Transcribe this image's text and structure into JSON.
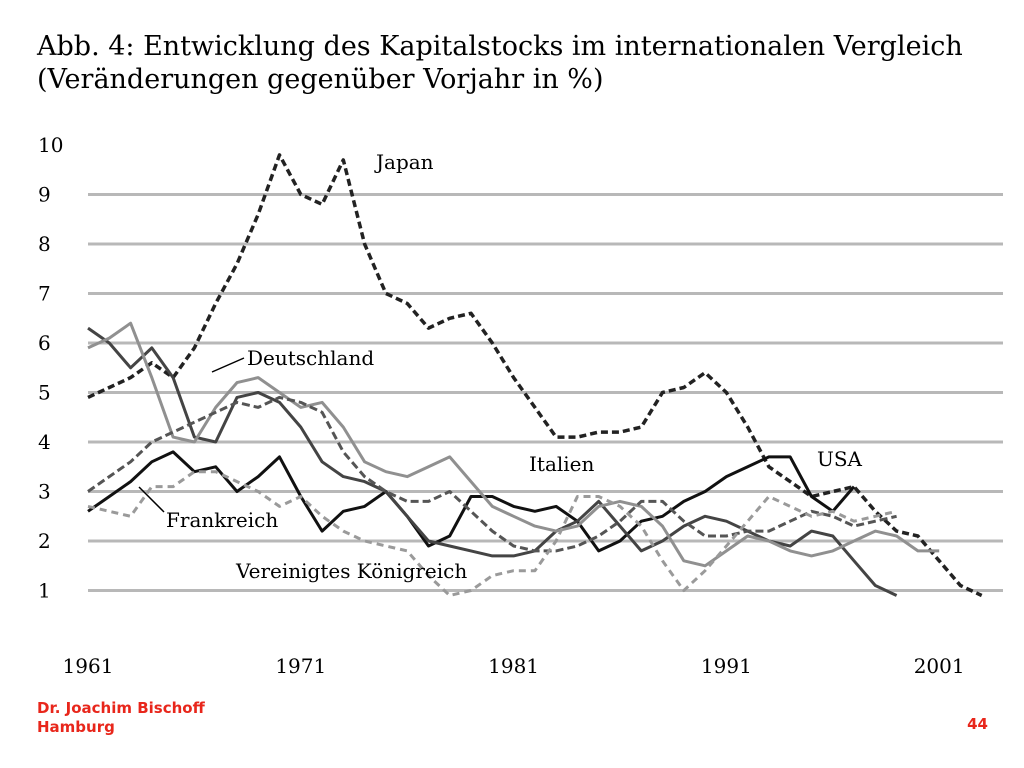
{
  "slide": {
    "title_line1": "Abb. 4: Entwicklung des Kapitalstocks im internationalen Vergleich",
    "title_line2": "(Veränderungen gegenüber Vorjahr in %)",
    "author_line1": "Dr. Joachim Bischoff",
    "author_line2": "Hamburg",
    "page_number": "44"
  },
  "chart_data": {
    "type": "line",
    "title": "Abb. 4: Entwicklung des Kapitalstocks im internationalen Vergleich (Veränderungen gegenüber Vorjahr in %)",
    "xlabel": "",
    "ylabel": "",
    "xlim": [
      1961,
      2004
    ],
    "ylim": [
      0,
      10
    ],
    "x_ticks": [
      1961,
      1971,
      1981,
      1991,
      2001
    ],
    "y_ticks": [
      1,
      2,
      3,
      4,
      5,
      6,
      7,
      8,
      9,
      10
    ],
    "grid": "horizontal",
    "legend": "inline labels",
    "series": [
      {
        "name": "Japan",
        "style": "dashed",
        "color": "#222222",
        "points": [
          [
            1961,
            4.9
          ],
          [
            1962,
            5.1
          ],
          [
            1963,
            5.3
          ],
          [
            1964,
            5.6
          ],
          [
            1965,
            5.3
          ],
          [
            1966,
            5.9
          ],
          [
            1967,
            6.8
          ],
          [
            1968,
            7.6
          ],
          [
            1969,
            8.6
          ],
          [
            1970,
            9.8
          ],
          [
            1971,
            9.0
          ],
          [
            1972,
            8.8
          ],
          [
            1973,
            9.7
          ],
          [
            1974,
            8.0
          ],
          [
            1975,
            7.0
          ],
          [
            1976,
            6.8
          ],
          [
            1977,
            6.3
          ],
          [
            1978,
            6.5
          ],
          [
            1979,
            6.6
          ],
          [
            1980,
            6.0
          ],
          [
            1981,
            5.3
          ],
          [
            1982,
            4.7
          ],
          [
            1983,
            4.1
          ],
          [
            1984,
            4.1
          ],
          [
            1985,
            4.2
          ],
          [
            1986,
            4.2
          ],
          [
            1987,
            4.3
          ],
          [
            1988,
            5.0
          ],
          [
            1989,
            5.1
          ],
          [
            1990,
            5.4
          ],
          [
            1991,
            5.0
          ],
          [
            1992,
            4.3
          ],
          [
            1993,
            3.5
          ],
          [
            1994,
            3.2
          ],
          [
            1995,
            2.9
          ],
          [
            1996,
            3.0
          ],
          [
            1997,
            3.1
          ],
          [
            1998,
            2.6
          ],
          [
            1999,
            2.2
          ],
          [
            2000,
            2.1
          ],
          [
            2001,
            1.6
          ],
          [
            2002,
            1.1
          ],
          [
            2003,
            0.9
          ]
        ]
      },
      {
        "name": "USA",
        "style": "solid",
        "color": "#111111",
        "points": [
          [
            1961,
            2.6
          ],
          [
            1962,
            2.9
          ],
          [
            1963,
            3.2
          ],
          [
            1964,
            3.6
          ],
          [
            1965,
            3.8
          ],
          [
            1966,
            3.4
          ],
          [
            1967,
            3.5
          ],
          [
            1968,
            3.0
          ],
          [
            1969,
            3.3
          ],
          [
            1970,
            3.7
          ],
          [
            1971,
            2.9
          ],
          [
            1972,
            2.2
          ],
          [
            1973,
            2.6
          ],
          [
            1974,
            2.7
          ],
          [
            1975,
            3.0
          ],
          [
            1976,
            2.5
          ],
          [
            1977,
            1.9
          ],
          [
            1978,
            2.1
          ],
          [
            1979,
            2.9
          ],
          [
            1980,
            2.9
          ],
          [
            1981,
            2.7
          ],
          [
            1982,
            2.6
          ],
          [
            1983,
            2.7
          ],
          [
            1984,
            2.4
          ],
          [
            1985,
            1.8
          ],
          [
            1986,
            2.0
          ],
          [
            1987,
            2.4
          ],
          [
            1988,
            2.5
          ],
          [
            1989,
            2.8
          ],
          [
            1990,
            3.0
          ],
          [
            1991,
            3.3
          ],
          [
            1992,
            3.5
          ],
          [
            1993,
            3.7
          ],
          [
            1994,
            3.7
          ],
          [
            1995,
            2.9
          ],
          [
            1996,
            2.6
          ],
          [
            1997,
            3.1
          ]
        ]
      },
      {
        "name": "Deutschland",
        "style": "solid",
        "color": "#444444",
        "points": [
          [
            1961,
            6.3
          ],
          [
            1962,
            6.0
          ],
          [
            1963,
            5.5
          ],
          [
            1964,
            5.9
          ],
          [
            1965,
            5.3
          ],
          [
            1966,
            4.1
          ],
          [
            1967,
            4.0
          ],
          [
            1968,
            4.9
          ],
          [
            1969,
            5.0
          ],
          [
            1970,
            4.8
          ],
          [
            1971,
            4.3
          ],
          [
            1972,
            3.6
          ],
          [
            1973,
            3.3
          ],
          [
            1974,
            3.2
          ],
          [
            1975,
            3.0
          ],
          [
            1976,
            2.5
          ],
          [
            1977,
            2.0
          ],
          [
            1978,
            1.9
          ],
          [
            1979,
            1.8
          ],
          [
            1980,
            1.7
          ],
          [
            1981,
            1.7
          ],
          [
            1982,
            1.8
          ],
          [
            1983,
            2.2
          ],
          [
            1984,
            2.4
          ],
          [
            1985,
            2.8
          ],
          [
            1986,
            2.3
          ],
          [
            1987,
            1.8
          ],
          [
            1988,
            2.0
          ],
          [
            1989,
            2.3
          ],
          [
            1990,
            2.5
          ],
          [
            1991,
            2.4
          ],
          [
            1992,
            2.2
          ],
          [
            1993,
            2.0
          ],
          [
            1994,
            1.9
          ],
          [
            1995,
            2.2
          ],
          [
            1996,
            2.1
          ],
          [
            1997,
            1.6
          ],
          [
            1998,
            1.1
          ],
          [
            1999,
            0.9
          ]
        ]
      },
      {
        "name": "Italien",
        "style": "solid",
        "color": "#909090",
        "points": [
          [
            1961,
            5.9
          ],
          [
            1962,
            6.1
          ],
          [
            1963,
            6.4
          ],
          [
            1964,
            5.3
          ],
          [
            1965,
            4.1
          ],
          [
            1966,
            4.0
          ],
          [
            1967,
            4.7
          ],
          [
            1968,
            5.2
          ],
          [
            1969,
            5.3
          ],
          [
            1970,
            5.0
          ],
          [
            1971,
            4.7
          ],
          [
            1972,
            4.8
          ],
          [
            1973,
            4.3
          ],
          [
            1974,
            3.6
          ],
          [
            1975,
            3.4
          ],
          [
            1976,
            3.3
          ],
          [
            1977,
            3.5
          ],
          [
            1978,
            3.7
          ],
          [
            1979,
            3.2
          ],
          [
            1980,
            2.7
          ],
          [
            1981,
            2.5
          ],
          [
            1982,
            2.3
          ],
          [
            1983,
            2.2
          ],
          [
            1984,
            2.3
          ],
          [
            1985,
            2.7
          ],
          [
            1986,
            2.8
          ],
          [
            1987,
            2.7
          ],
          [
            1988,
            2.3
          ],
          [
            1989,
            1.6
          ],
          [
            1990,
            1.5
          ],
          [
            1991,
            1.8
          ],
          [
            1992,
            2.1
          ],
          [
            1993,
            2.0
          ],
          [
            1994,
            1.8
          ],
          [
            1995,
            1.7
          ],
          [
            1996,
            1.8
          ],
          [
            1997,
            2.0
          ],
          [
            1998,
            2.2
          ],
          [
            1999,
            2.1
          ],
          [
            2000,
            1.8
          ],
          [
            2001,
            1.8
          ]
        ]
      },
      {
        "name": "Frankreich",
        "style": "dashed",
        "color": "#555555",
        "points": [
          [
            1961,
            3.0
          ],
          [
            1962,
            3.3
          ],
          [
            1963,
            3.6
          ],
          [
            1964,
            4.0
          ],
          [
            1965,
            4.2
          ],
          [
            1966,
            4.4
          ],
          [
            1967,
            4.6
          ],
          [
            1968,
            4.8
          ],
          [
            1969,
            4.7
          ],
          [
            1970,
            4.9
          ],
          [
            1971,
            4.8
          ],
          [
            1972,
            4.6
          ],
          [
            1973,
            3.8
          ],
          [
            1974,
            3.3
          ],
          [
            1975,
            3.0
          ],
          [
            1976,
            2.8
          ],
          [
            1977,
            2.8
          ],
          [
            1978,
            3.0
          ],
          [
            1979,
            2.6
          ],
          [
            1980,
            2.2
          ],
          [
            1981,
            1.9
          ],
          [
            1982,
            1.8
          ],
          [
            1983,
            1.8
          ],
          [
            1984,
            1.9
          ],
          [
            1985,
            2.1
          ],
          [
            1986,
            2.4
          ],
          [
            1987,
            2.8
          ],
          [
            1988,
            2.8
          ],
          [
            1989,
            2.4
          ],
          [
            1990,
            2.1
          ],
          [
            1991,
            2.1
          ],
          [
            1992,
            2.2
          ],
          [
            1993,
            2.2
          ],
          [
            1994,
            2.4
          ],
          [
            1995,
            2.6
          ],
          [
            1996,
            2.5
          ],
          [
            1997,
            2.3
          ],
          [
            1998,
            2.4
          ],
          [
            1999,
            2.5
          ]
        ]
      },
      {
        "name": "Vereinigtes Königreich",
        "style": "dashed",
        "color": "#9a9a9a",
        "points": [
          [
            1961,
            2.7
          ],
          [
            1962,
            2.6
          ],
          [
            1963,
            2.5
          ],
          [
            1964,
            3.1
          ],
          [
            1965,
            3.1
          ],
          [
            1966,
            3.4
          ],
          [
            1967,
            3.4
          ],
          [
            1968,
            3.2
          ],
          [
            1969,
            3.0
          ],
          [
            1970,
            2.7
          ],
          [
            1971,
            2.9
          ],
          [
            1972,
            2.5
          ],
          [
            1973,
            2.2
          ],
          [
            1974,
            2.0
          ],
          [
            1975,
            1.9
          ],
          [
            1976,
            1.8
          ],
          [
            1977,
            1.3
          ],
          [
            1978,
            0.9
          ],
          [
            1979,
            1.0
          ],
          [
            1980,
            1.3
          ],
          [
            1981,
            1.4
          ],
          [
            1982,
            1.4
          ],
          [
            1983,
            2.0
          ],
          [
            1984,
            2.9
          ],
          [
            1985,
            2.9
          ],
          [
            1986,
            2.7
          ],
          [
            1987,
            2.3
          ],
          [
            1988,
            1.6
          ],
          [
            1989,
            1.0
          ],
          [
            1990,
            1.4
          ],
          [
            1991,
            1.9
          ],
          [
            1992,
            2.4
          ],
          [
            1993,
            2.9
          ],
          [
            1994,
            2.7
          ],
          [
            1995,
            2.5
          ],
          [
            1996,
            2.6
          ],
          [
            1997,
            2.4
          ],
          [
            1998,
            2.5
          ],
          [
            1999,
            2.6
          ]
        ]
      }
    ],
    "annotations": [
      {
        "text": "Japan",
        "series": "Japan"
      },
      {
        "text": "Deutschland",
        "series": "Deutschland"
      },
      {
        "text": "Italien",
        "series": "Italien"
      },
      {
        "text": "USA",
        "series": "USA"
      },
      {
        "text": "Frankreich",
        "series": "Frankreich"
      },
      {
        "text": "Vereinigtes Königreich",
        "series": "Vereinigtes Königreich"
      }
    ]
  }
}
